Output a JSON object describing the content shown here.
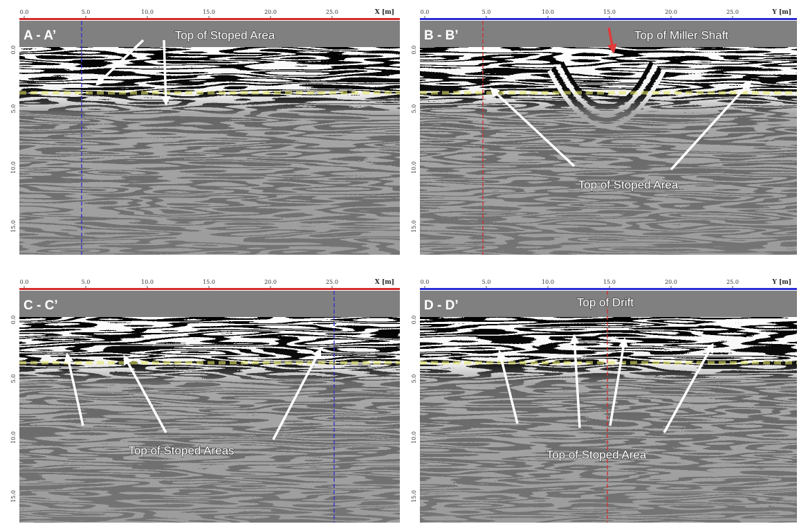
{
  "panels": [
    {
      "label": "A - A’",
      "axis_label": "X [m]",
      "x_tick_labels": [
        "0.0",
        "5.0",
        "10.0",
        "15.0",
        "20.0",
        "25.0"
      ],
      "y_tick_labels": [
        "0.0",
        "5.0",
        "10.0",
        "15.0"
      ],
      "annotations": [
        "Top of Stoped Area"
      ]
    },
    {
      "label": "B - B’",
      "axis_label": "Y [m]",
      "x_tick_labels": [
        "0.0",
        "5.0",
        "10.0",
        "15.0",
        "20.0",
        "25.0"
      ],
      "y_tick_labels": [
        "0.0",
        "5.0",
        "10.0",
        "15.0"
      ],
      "annotations": [
        "Top of Miller Shaft",
        "Top of Stoped Area"
      ]
    },
    {
      "label": "C - C’",
      "axis_label": "X [m]",
      "x_tick_labels": [
        "0.0",
        "5.0",
        "10.0",
        "15.0",
        "20.0",
        "25.0"
      ],
      "y_tick_labels": [
        "0.0",
        "5.0",
        "10.0",
        "15.0"
      ],
      "annotations": [
        "Top of Stoped Areas"
      ]
    },
    {
      "label": "D - D’",
      "axis_label": "Y [m]",
      "x_tick_labels": [
        "0.0",
        "5.0",
        "10.0",
        "15.0",
        "20.0",
        "25.0"
      ],
      "y_tick_labels": [
        "0.0",
        "5.0",
        "10.0",
        "15.0"
      ],
      "annotations": [
        "Top of Drift",
        "Top of Stoped Area"
      ]
    }
  ]
}
